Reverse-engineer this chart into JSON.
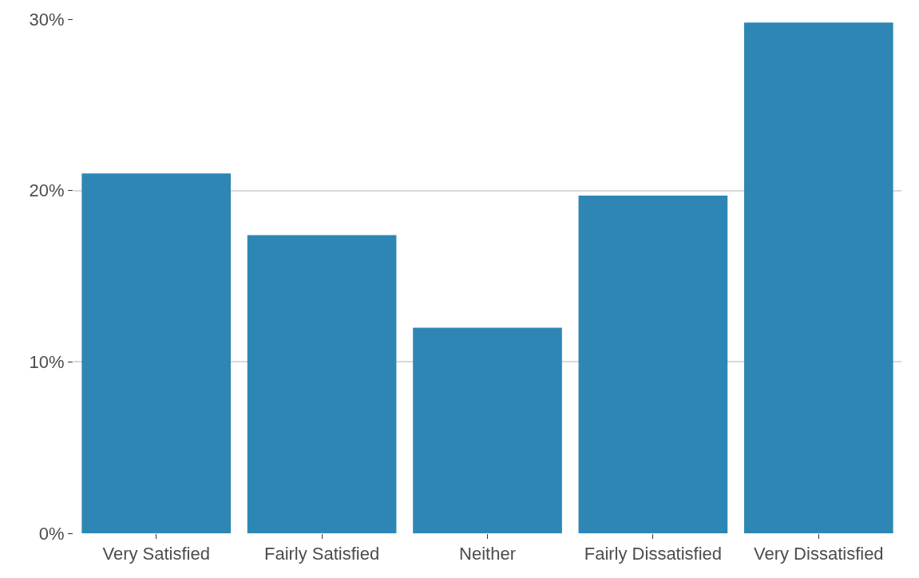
{
  "chart_data": {
    "type": "bar",
    "categories": [
      "Very Satisfied",
      "Fairly Satisfied",
      "Neither",
      "Fairly Dissatisfied",
      "Very Dissatisfied"
    ],
    "values": [
      21.0,
      17.4,
      12.0,
      19.7,
      29.8
    ],
    "color": "#2e86b5",
    "ylim": [
      0,
      30
    ],
    "yticks": [
      {
        "value": 0,
        "label": "0%"
      },
      {
        "value": 10,
        "label": "10%"
      },
      {
        "value": 20,
        "label": "20%"
      },
      {
        "value": 30,
        "label": "30%"
      }
    ],
    "grid": "y"
  }
}
